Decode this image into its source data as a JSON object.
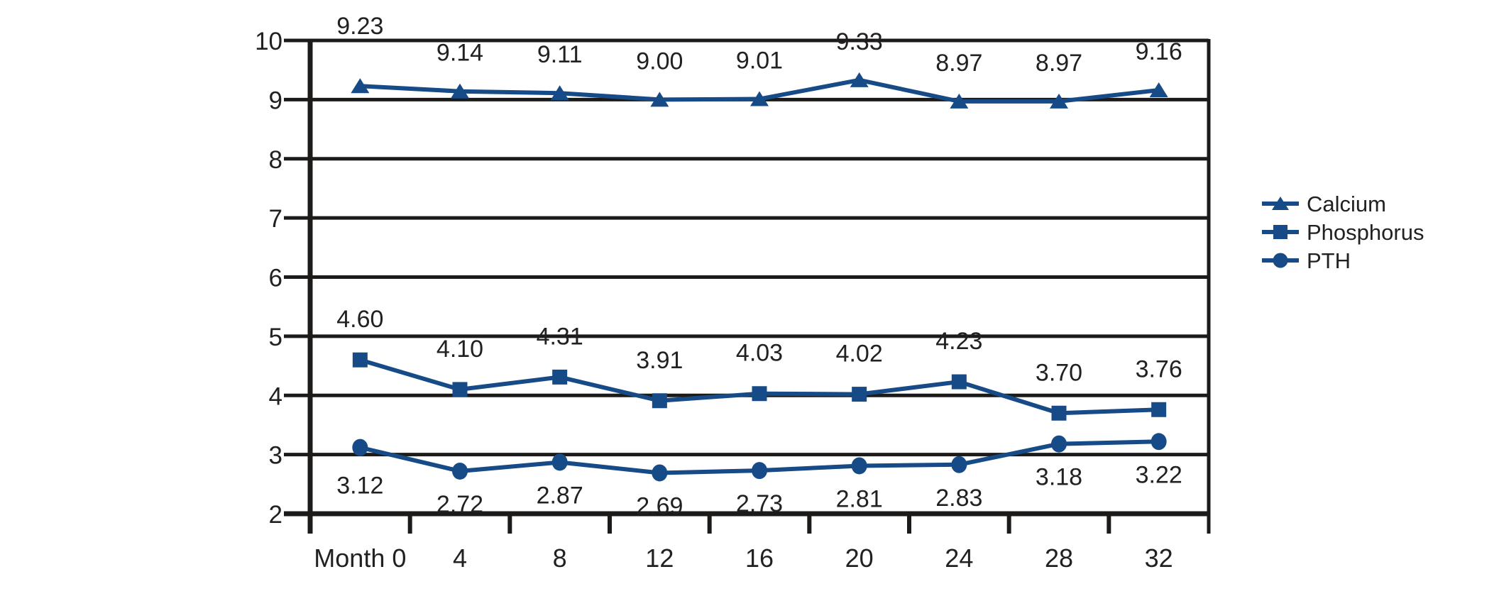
{
  "chart_data": {
    "type": "line",
    "title": "",
    "xlabel": "",
    "ylabel": "",
    "categories": [
      "Month 0",
      "4",
      "8",
      "12",
      "16",
      "20",
      "24",
      "28",
      "32"
    ],
    "series": [
      {
        "name": "Calcium",
        "marker": "triangle",
        "values": [
          9.23,
          9.14,
          9.11,
          9.0,
          9.01,
          9.33,
          8.97,
          8.97,
          9.16
        ],
        "labels": [
          "9.23",
          "9.14",
          "9.11",
          "9.00",
          "9.01",
          "9.33",
          "8.97",
          "8.97",
          "9.16"
        ],
        "label_position": "above"
      },
      {
        "name": "Phosphorus",
        "marker": "square",
        "values": [
          4.6,
          4.1,
          4.31,
          3.91,
          4.03,
          4.02,
          4.23,
          3.7,
          3.76
        ],
        "labels": [
          "4.60",
          "4.10",
          "4.31",
          "3.91",
          "4.03",
          "4.02",
          "4.23",
          "3.70",
          "3.76"
        ],
        "label_position": "above"
      },
      {
        "name": "PTH",
        "marker": "circle",
        "values": [
          3.12,
          2.72,
          2.87,
          2.69,
          2.73,
          2.81,
          2.83,
          3.18,
          3.22
        ],
        "labels": [
          "3.12",
          "2.72",
          "2.87",
          "2.69",
          "2.73",
          "2.81",
          "2.83",
          "3.18",
          "3.22"
        ],
        "label_position": "below"
      }
    ],
    "yticks": [
      2,
      3,
      4,
      5,
      6,
      7,
      8,
      9,
      10
    ],
    "ylim": [
      2,
      10
    ],
    "grid": true,
    "legend_position": "right",
    "colors": {
      "series": "#174b87",
      "grid": "#1c1b19",
      "text": "#232021",
      "background": "#ffffff"
    }
  }
}
